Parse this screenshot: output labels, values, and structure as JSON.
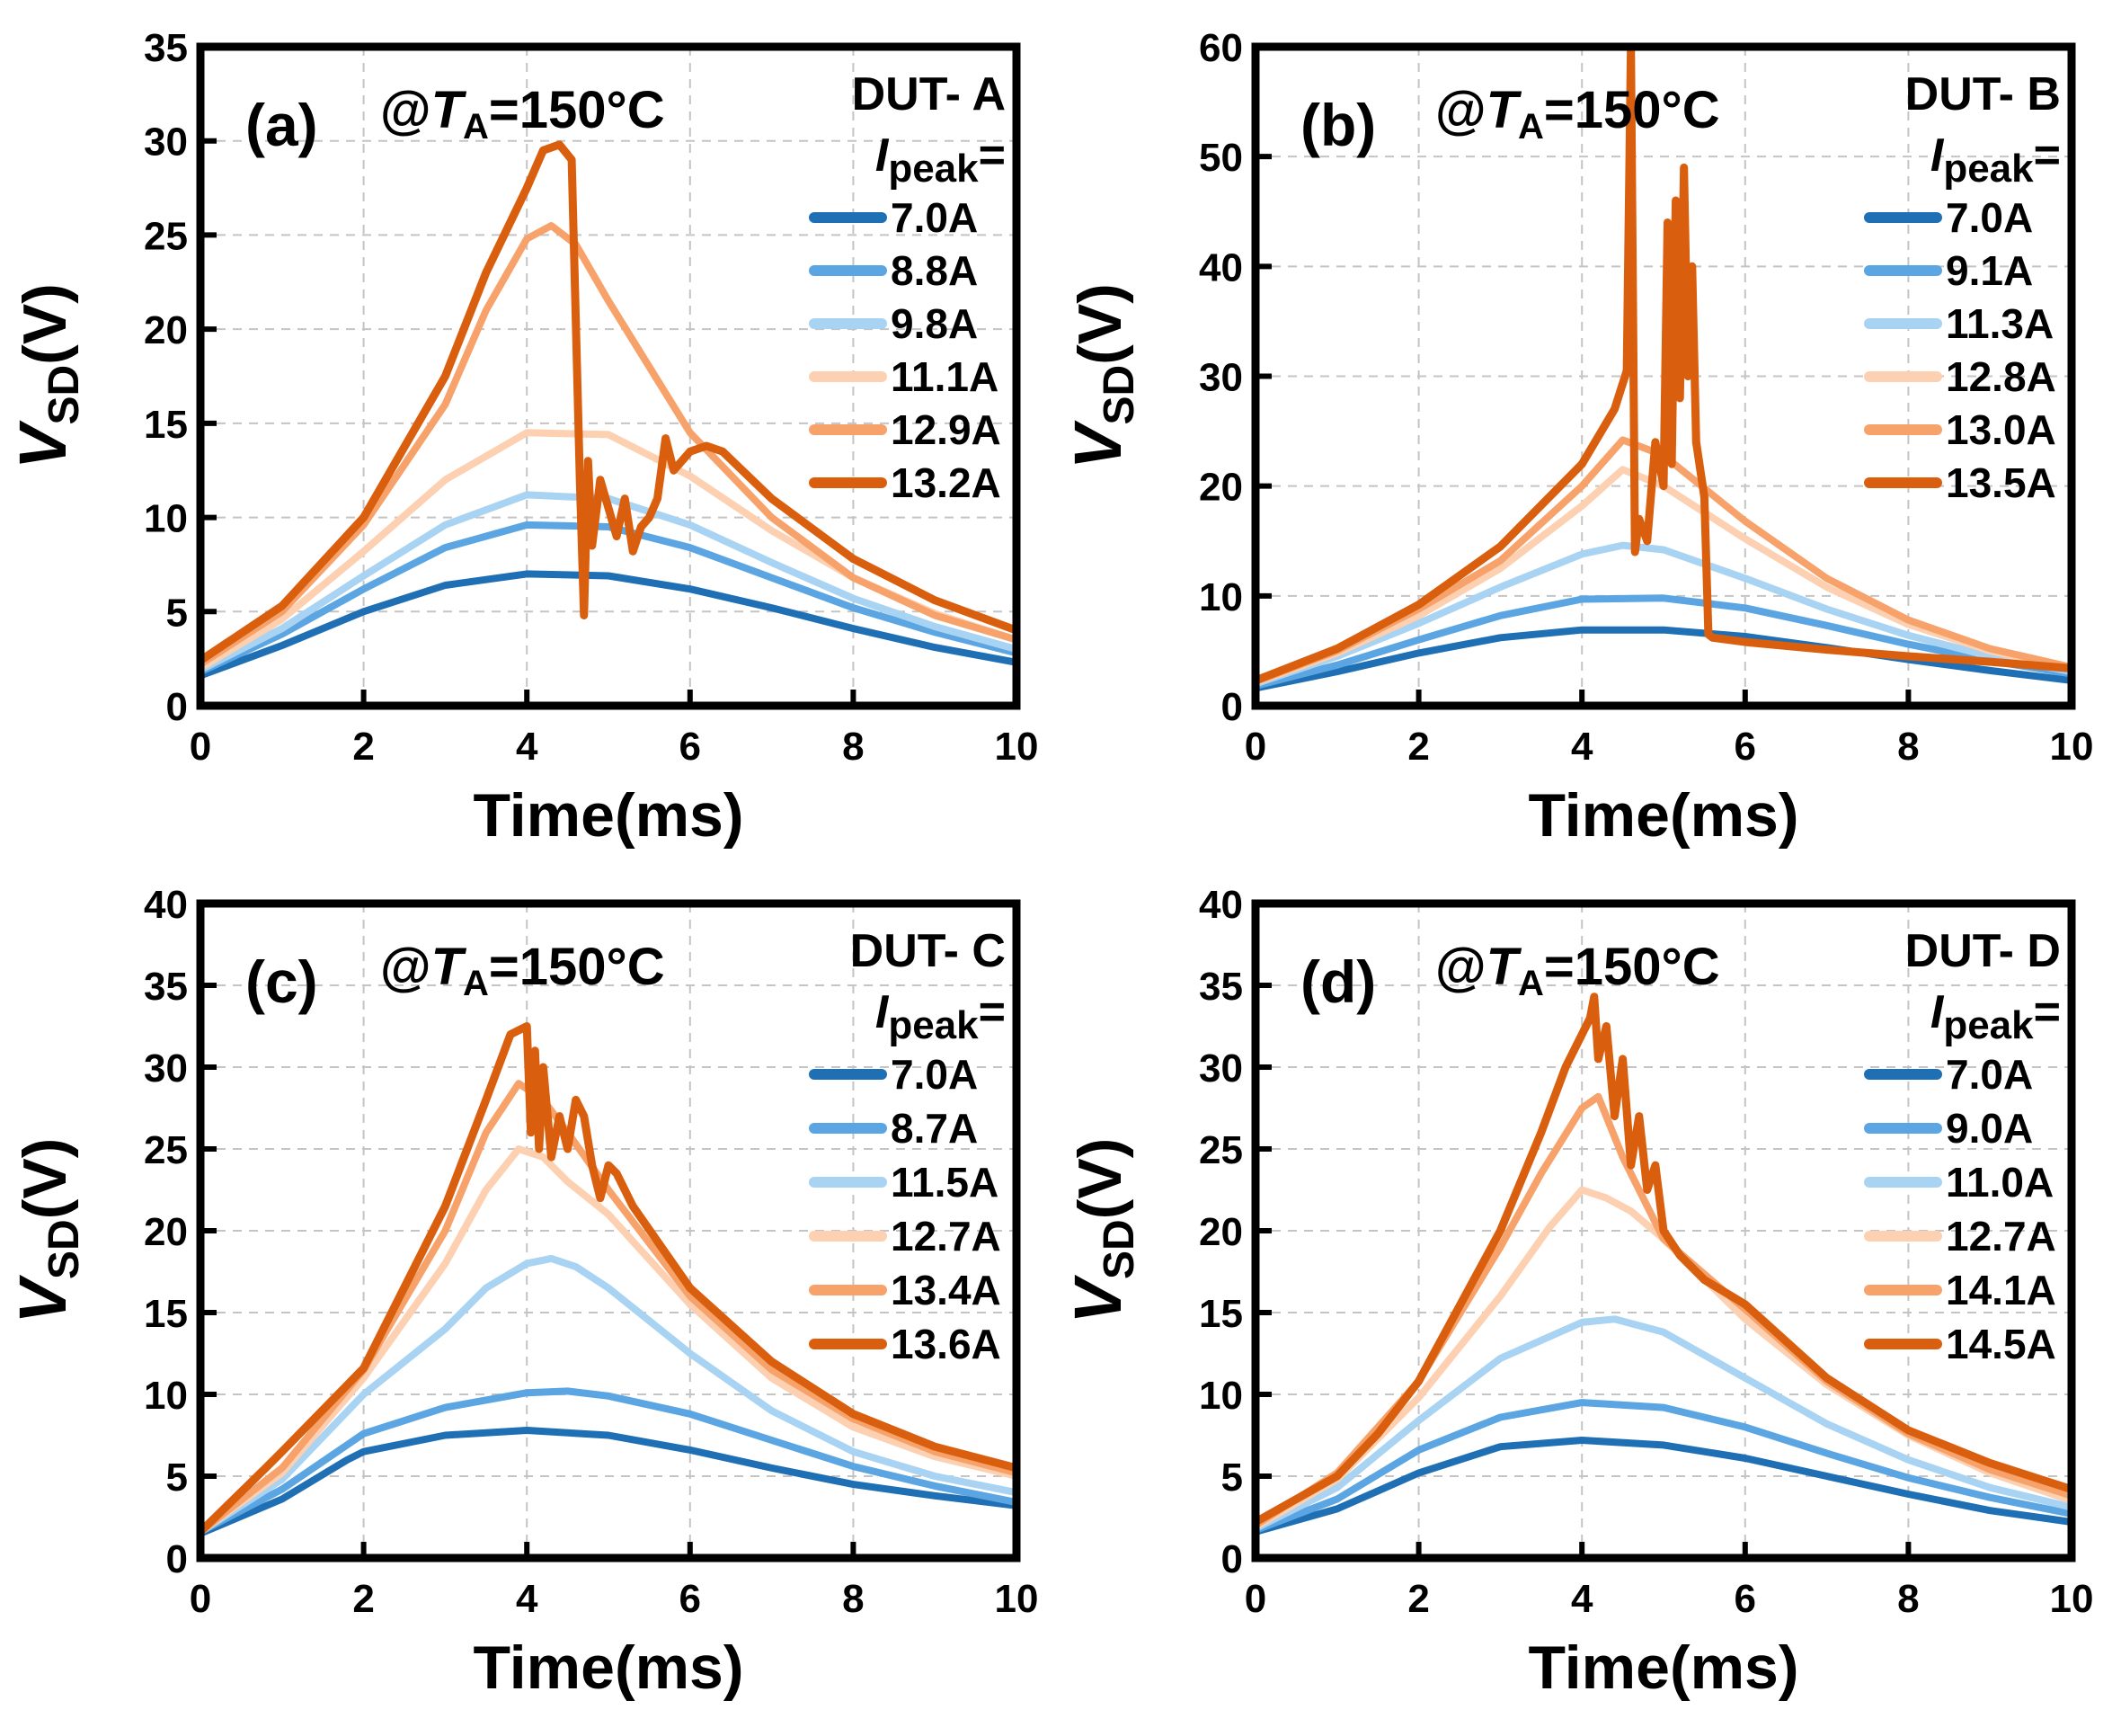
{
  "figure": {
    "panels": [
      {
        "id": "a",
        "panel_label": "(a)",
        "condition": {
          "prefix": "@",
          "var": "T",
          "sub": "A",
          "value": "=150°C"
        },
        "legend": {
          "dut": "DUT- A",
          "ipeak_var": "I",
          "ipeak_sub": "peak",
          "ipeak_eq": "="
        },
        "xlabel": "Time(ms)",
        "ylabel": {
          "var": "V",
          "sub": "SD",
          "unit": "(V)"
        },
        "xticks": [
          "0",
          "2",
          "4",
          "6",
          "8",
          "10"
        ],
        "yticks": [
          "0",
          "5",
          "10",
          "15",
          "20",
          "25",
          "30",
          "35"
        ]
      },
      {
        "id": "b",
        "panel_label": "(b)",
        "condition": {
          "prefix": "@",
          "var": "T",
          "sub": "A",
          "value": "=150°C"
        },
        "legend": {
          "dut": "DUT- B",
          "ipeak_var": "I",
          "ipeak_sub": "peak",
          "ipeak_eq": "="
        },
        "xlabel": "Time(ms)",
        "ylabel": {
          "var": "V",
          "sub": "SD",
          "unit": "(V)"
        },
        "xticks": [
          "0",
          "2",
          "4",
          "6",
          "8",
          "10"
        ],
        "yticks": [
          "0",
          "10",
          "20",
          "30",
          "40",
          "50",
          "60"
        ]
      },
      {
        "id": "c",
        "panel_label": "(c)",
        "condition": {
          "prefix": "@",
          "var": "T",
          "sub": "A",
          "value": "=150°C"
        },
        "legend": {
          "dut": "DUT- C",
          "ipeak_var": "I",
          "ipeak_sub": "peak",
          "ipeak_eq": "="
        },
        "xlabel": "Time(ms)",
        "ylabel": {
          "var": "V",
          "sub": "SD",
          "unit": "(V)"
        },
        "xticks": [
          "0",
          "2",
          "4",
          "6",
          "8",
          "10"
        ],
        "yticks": [
          "0",
          "5",
          "10",
          "15",
          "20",
          "25",
          "30",
          "35",
          "40"
        ]
      },
      {
        "id": "d",
        "panel_label": "(d)",
        "condition": {
          "prefix": "@",
          "var": "T",
          "sub": "A",
          "value": "=150°C"
        },
        "legend": {
          "dut": "DUT- D",
          "ipeak_var": "I",
          "ipeak_sub": "peak",
          "ipeak_eq": "="
        },
        "xlabel": "Time(ms)",
        "ylabel": {
          "var": "V",
          "sub": "SD",
          "unit": "(V)"
        },
        "xticks": [
          "0",
          "2",
          "4",
          "6",
          "8",
          "10"
        ],
        "yticks": [
          "0",
          "5",
          "10",
          "15",
          "20",
          "25",
          "30",
          "35",
          "40"
        ]
      }
    ]
  },
  "chart_data": [
    {
      "type": "line",
      "panel": "(a)",
      "title": "@TA=150°C",
      "xlabel": "Time(ms)",
      "ylabel": "VSD(V)",
      "xlim": [
        0,
        10
      ],
      "ylim": [
        0,
        35
      ],
      "grid": true,
      "legend_position": "top-right",
      "series": [
        {
          "name": "7.0A",
          "color": "#1f6fb5",
          "x": [
            0,
            1,
            2,
            3,
            4,
            5,
            6,
            7,
            8,
            9,
            10
          ],
          "y": [
            1.6,
            3.2,
            5.0,
            6.4,
            7.0,
            6.9,
            6.2,
            5.2,
            4.1,
            3.1,
            2.3
          ]
        },
        {
          "name": "8.8A",
          "color": "#5aa5e2",
          "x": [
            0,
            1,
            2,
            3,
            4,
            5,
            6,
            7,
            8,
            9,
            10
          ],
          "y": [
            1.8,
            3.8,
            6.2,
            8.4,
            9.6,
            9.5,
            8.4,
            6.8,
            5.2,
            3.9,
            2.8
          ]
        },
        {
          "name": "9.8A",
          "color": "#a8d3f2",
          "x": [
            0,
            1,
            2,
            3,
            4,
            5,
            6,
            7,
            8,
            9,
            10
          ],
          "y": [
            1.9,
            4.1,
            6.9,
            9.6,
            11.2,
            11.0,
            9.6,
            7.6,
            5.7,
            4.2,
            3.0
          ]
        },
        {
          "name": "11.1A",
          "color": "#fcd0b0",
          "x": [
            0,
            1,
            2,
            3,
            4,
            5,
            6,
            7,
            8,
            9,
            10
          ],
          "y": [
            2.0,
            4.6,
            8.2,
            12.0,
            14.5,
            14.4,
            12.2,
            9.3,
            6.8,
            4.9,
            3.5
          ]
        },
        {
          "name": "12.9A",
          "color": "#f7a26a",
          "x": [
            0,
            1,
            2,
            3,
            3.5,
            4,
            4.3,
            4.6,
            5,
            5.5,
            6,
            7,
            8,
            9,
            10
          ],
          "y": [
            2.2,
            5.0,
            9.6,
            16.0,
            21.0,
            24.8,
            25.5,
            24.5,
            21.5,
            18.0,
            14.5,
            10.0,
            6.8,
            4.8,
            3.5
          ]
        },
        {
          "name": "13.2A",
          "color": "#d95f0e",
          "x": [
            0,
            1,
            2,
            3,
            3.5,
            4,
            4.2,
            4.4,
            4.55,
            4.65,
            4.7,
            4.75,
            4.8,
            4.9,
            5.0,
            5.1,
            5.2,
            5.3,
            5.4,
            5.5,
            5.6,
            5.7,
            5.8,
            6.0,
            6.2,
            6.4,
            7,
            8,
            9,
            10
          ],
          "y": [
            2.4,
            5.3,
            10.0,
            17.5,
            23.0,
            27.5,
            29.5,
            29.8,
            29.0,
            12.0,
            4.8,
            13.0,
            8.5,
            12.0,
            10.5,
            9.0,
            11.0,
            8.2,
            9.5,
            10.0,
            11.0,
            14.2,
            12.5,
            13.5,
            13.8,
            13.5,
            11.0,
            7.8,
            5.6,
            4.0
          ]
        }
      ]
    },
    {
      "type": "line",
      "panel": "(b)",
      "title": "@TA=150°C",
      "xlabel": "Time(ms)",
      "ylabel": "VSD(V)",
      "xlim": [
        0,
        10
      ],
      "ylim": [
        0,
        60
      ],
      "grid": true,
      "legend_position": "top-right",
      "series": [
        {
          "name": "7.0A",
          "color": "#1f6fb5",
          "x": [
            0,
            1,
            2,
            3,
            4,
            5,
            6,
            7,
            8,
            9,
            10
          ],
          "y": [
            1.6,
            3.1,
            4.8,
            6.2,
            6.9,
            6.9,
            6.3,
            5.3,
            4.2,
            3.2,
            2.3
          ]
        },
        {
          "name": "9.1A",
          "color": "#5aa5e2",
          "x": [
            0,
            1,
            2,
            3,
            4,
            5,
            6,
            7,
            8,
            9,
            10
          ],
          "y": [
            1.8,
            3.7,
            6.0,
            8.2,
            9.7,
            9.8,
            8.9,
            7.3,
            5.6,
            4.1,
            2.9
          ]
        },
        {
          "name": "11.3A",
          "color": "#a8d3f2",
          "x": [
            0,
            1,
            2,
            3,
            4,
            4.5,
            5,
            6,
            7,
            8,
            9,
            10
          ],
          "y": [
            2.0,
            4.5,
            7.5,
            10.8,
            13.8,
            14.6,
            14.2,
            11.6,
            8.8,
            6.4,
            4.5,
            3.1
          ]
        },
        {
          "name": "12.8A",
          "color": "#fcd0b0",
          "x": [
            0,
            1,
            2,
            3,
            4,
            4.5,
            5,
            6,
            7,
            8,
            9,
            10
          ],
          "y": [
            2.1,
            4.8,
            8.2,
            12.5,
            18.2,
            21.5,
            20.0,
            15.2,
            10.8,
            7.4,
            5.0,
            3.3
          ]
        },
        {
          "name": "13.0A",
          "color": "#f7a26a",
          "x": [
            0,
            1,
            2,
            3,
            4,
            4.5,
            5,
            6,
            7,
            8,
            9,
            10
          ],
          "y": [
            2.2,
            5.0,
            8.8,
            13.2,
            20.0,
            24.2,
            22.8,
            16.8,
            11.6,
            7.8,
            5.2,
            3.5
          ]
        },
        {
          "name": "13.5A",
          "color": "#d95f0e",
          "x": [
            0,
            1,
            2,
            3,
            4,
            4.4,
            4.55,
            4.6,
            4.65,
            4.7,
            4.8,
            4.9,
            5.0,
            5.05,
            5.1,
            5.15,
            5.2,
            5.25,
            5.3,
            5.35,
            5.4,
            5.5,
            5.55,
            5.6,
            6,
            7,
            8,
            9,
            10
          ],
          "y": [
            2.3,
            5.2,
            9.2,
            14.5,
            22.0,
            27.0,
            30.5,
            60,
            14.0,
            17.0,
            15.0,
            24.0,
            20.0,
            44.0,
            22.0,
            46.0,
            28.0,
            49.0,
            30.0,
            40.0,
            24.0,
            19.0,
            6.5,
            6.2,
            5.8,
            5.1,
            4.5,
            4.0,
            3.4
          ]
        }
      ]
    },
    {
      "type": "line",
      "panel": "(c)",
      "title": "@TA=150°C",
      "xlabel": "Time(ms)",
      "ylabel": "VSD(V)",
      "xlim": [
        0,
        10
      ],
      "ylim": [
        0,
        40
      ],
      "grid": true,
      "legend_position": "top-right",
      "series": [
        {
          "name": "7.0A",
          "color": "#1f6fb5",
          "x": [
            0,
            1,
            1.8,
            2,
            3,
            4,
            5,
            6,
            7,
            8,
            9,
            10
          ],
          "y": [
            1.5,
            3.6,
            6.0,
            6.5,
            7.5,
            7.8,
            7.5,
            6.6,
            5.5,
            4.5,
            3.8,
            3.2
          ]
        },
        {
          "name": "8.7A",
          "color": "#5aa5e2",
          "x": [
            0,
            1,
            2,
            3,
            4,
            4.5,
            5,
            6,
            7,
            8,
            9,
            10
          ],
          "y": [
            1.6,
            4.2,
            7.6,
            9.2,
            10.1,
            10.2,
            9.9,
            8.8,
            7.2,
            5.6,
            4.4,
            3.4
          ]
        },
        {
          "name": "11.5A",
          "color": "#a8d3f2",
          "x": [
            0,
            1,
            2,
            3,
            3.5,
            4,
            4.3,
            4.6,
            5,
            6,
            7,
            8,
            9,
            10
          ],
          "y": [
            1.6,
            4.8,
            10.0,
            14.0,
            16.5,
            18.0,
            18.3,
            17.8,
            16.5,
            12.5,
            9.0,
            6.5,
            5.0,
            4.0
          ]
        },
        {
          "name": "12.7A",
          "color": "#fcd0b0",
          "x": [
            0,
            1,
            2,
            3,
            3.5,
            3.9,
            4.2,
            4.5,
            5,
            6,
            7,
            8,
            9,
            10
          ],
          "y": [
            1.6,
            5.2,
            11.0,
            18.0,
            22.5,
            25.0,
            24.5,
            23.0,
            21.0,
            15.5,
            11.0,
            8.0,
            6.2,
            5.0
          ]
        },
        {
          "name": "13.4A",
          "color": "#f7a26a",
          "x": [
            0,
            1,
            2,
            3,
            3.5,
            3.9,
            4.2,
            4.5,
            5,
            6,
            7,
            8,
            9,
            10
          ],
          "y": [
            1.6,
            5.5,
            11.5,
            20.0,
            26.0,
            29.0,
            28.0,
            26.0,
            22.5,
            16.0,
            11.5,
            8.5,
            6.5,
            5.2
          ]
        },
        {
          "name": "13.6A",
          "color": "#d95f0e",
          "x": [
            0,
            0.8,
            1,
            2,
            3,
            3.5,
            3.8,
            4.0,
            4.05,
            4.1,
            4.15,
            4.2,
            4.3,
            4.4,
            4.5,
            4.6,
            4.7,
            4.8,
            4.9,
            5.0,
            5.1,
            5.3,
            6,
            7,
            8,
            9,
            10
          ],
          "y": [
            1.6,
            5.5,
            6.5,
            11.6,
            21.5,
            28.0,
            32.0,
            32.5,
            26.0,
            31.0,
            25.0,
            30.0,
            24.5,
            27.0,
            25.0,
            28.0,
            27.0,
            24.0,
            22.0,
            24.0,
            23.5,
            21.5,
            16.5,
            12.0,
            8.8,
            6.8,
            5.5
          ]
        }
      ]
    },
    {
      "type": "line",
      "panel": "(d)",
      "title": "@TA=150°C",
      "xlabel": "Time(ms)",
      "ylabel": "VSD(V)",
      "xlim": [
        0,
        10
      ],
      "ylim": [
        0,
        40
      ],
      "grid": true,
      "legend_position": "top-right",
      "series": [
        {
          "name": "7.0A",
          "color": "#1f6fb5",
          "x": [
            0,
            1,
            2,
            3,
            4,
            5,
            6,
            7,
            8,
            9,
            10
          ],
          "y": [
            1.6,
            3.0,
            5.2,
            6.8,
            7.2,
            6.9,
            6.1,
            5.0,
            3.9,
            2.9,
            2.2
          ]
        },
        {
          "name": "9.0A",
          "color": "#5aa5e2",
          "x": [
            0,
            1,
            2,
            3,
            4,
            5,
            6,
            7,
            8,
            9,
            10
          ],
          "y": [
            1.7,
            3.6,
            6.6,
            8.6,
            9.5,
            9.2,
            8.0,
            6.4,
            4.9,
            3.7,
            2.7
          ]
        },
        {
          "name": "11.0A",
          "color": "#a8d3f2",
          "x": [
            0,
            1,
            2,
            3,
            4,
            4.4,
            5,
            6,
            7,
            8,
            9,
            10
          ],
          "y": [
            1.8,
            4.3,
            8.4,
            12.2,
            14.4,
            14.6,
            13.8,
            11.0,
            8.2,
            6.0,
            4.3,
            3.1
          ]
        },
        {
          "name": "12.7A",
          "color": "#fcd0b0",
          "x": [
            0,
            1,
            2,
            3,
            3.6,
            4,
            4.3,
            4.6,
            5,
            6,
            7,
            8,
            9,
            10
          ],
          "y": [
            1.9,
            4.8,
            9.8,
            16.0,
            20.2,
            22.5,
            22.0,
            21.2,
            19.5,
            14.6,
            10.6,
            7.5,
            5.2,
            3.5
          ]
        },
        {
          "name": "14.1A",
          "color": "#f7a26a",
          "x": [
            0,
            1,
            2,
            3,
            3.5,
            4,
            4.2,
            4.5,
            5,
            6,
            7,
            8,
            9,
            10
          ],
          "y": [
            2.0,
            5.2,
            10.8,
            19.0,
            23.5,
            27.5,
            28.2,
            24.5,
            19.5,
            15.2,
            10.8,
            7.6,
            5.4,
            3.8
          ]
        },
        {
          "name": "14.5A",
          "color": "#d95f0e",
          "x": [
            0,
            1,
            1.5,
            2,
            3,
            3.5,
            3.8,
            4.0,
            4.1,
            4.15,
            4.2,
            4.3,
            4.4,
            4.5,
            4.6,
            4.7,
            4.8,
            4.9,
            5.0,
            5.2,
            5.5,
            6,
            7,
            8,
            9,
            10
          ],
          "y": [
            2.2,
            5.0,
            7.6,
            10.8,
            20.0,
            26.0,
            30.0,
            32.0,
            33.0,
            34.3,
            30.5,
            32.5,
            27.0,
            30.5,
            24.0,
            27.0,
            22.5,
            24.0,
            20.0,
            18.5,
            17.0,
            15.5,
            11.0,
            7.8,
            5.8,
            4.2
          ]
        }
      ]
    }
  ]
}
